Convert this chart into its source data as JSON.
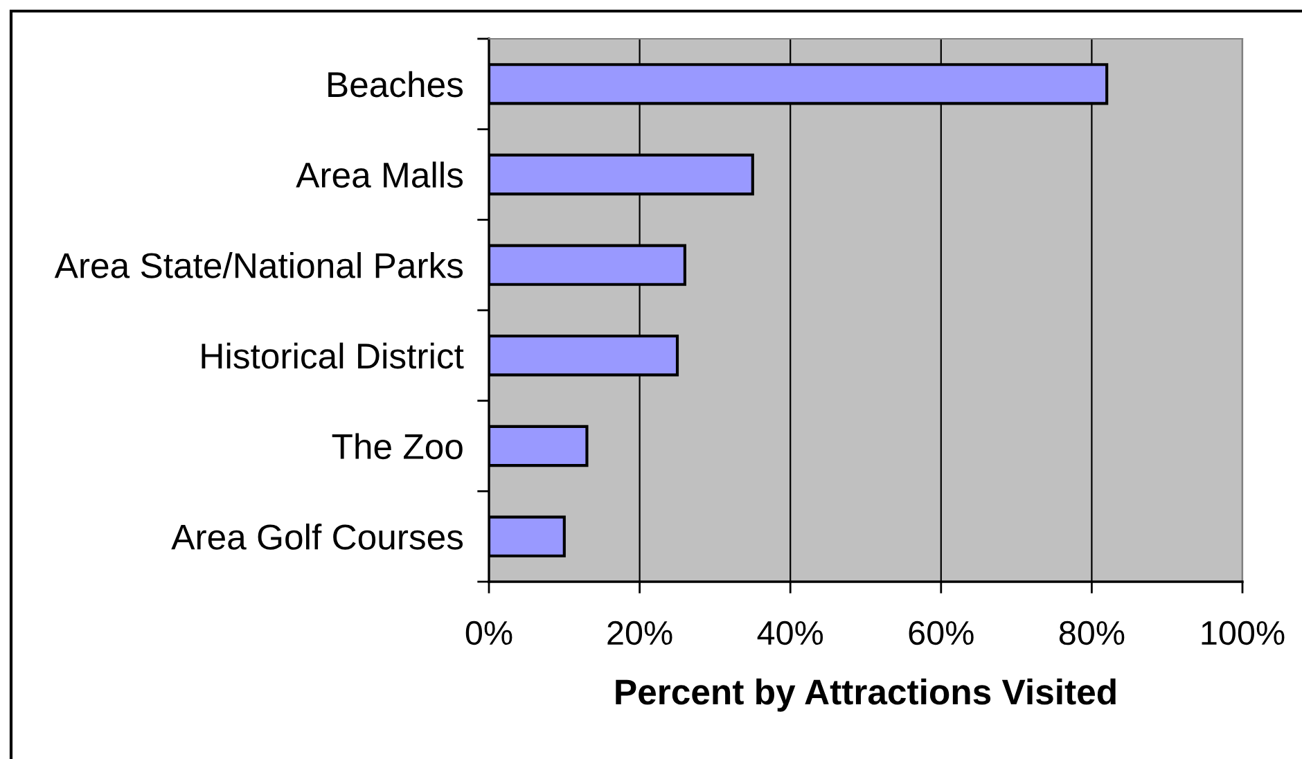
{
  "chart_data": {
    "type": "bar",
    "orientation": "horizontal",
    "categories": [
      "Beaches",
      "Area Malls",
      "Area State/National Parks",
      "Historical District",
      "The Zoo",
      "Area Golf Courses"
    ],
    "values": [
      82,
      35,
      26,
      25,
      13,
      10
    ],
    "color": "#9999ff",
    "xlabel": "Percent by Attractions Visited",
    "xlim": [
      0,
      100
    ],
    "xticks": [
      {
        "value": 0,
        "label": "0%"
      },
      {
        "value": 20,
        "label": "20%"
      },
      {
        "value": 40,
        "label": "40%"
      },
      {
        "value": 60,
        "label": "60%"
      },
      {
        "value": 80,
        "label": "80%"
      },
      {
        "value": 100,
        "label": "100%"
      }
    ],
    "grid": "x"
  }
}
